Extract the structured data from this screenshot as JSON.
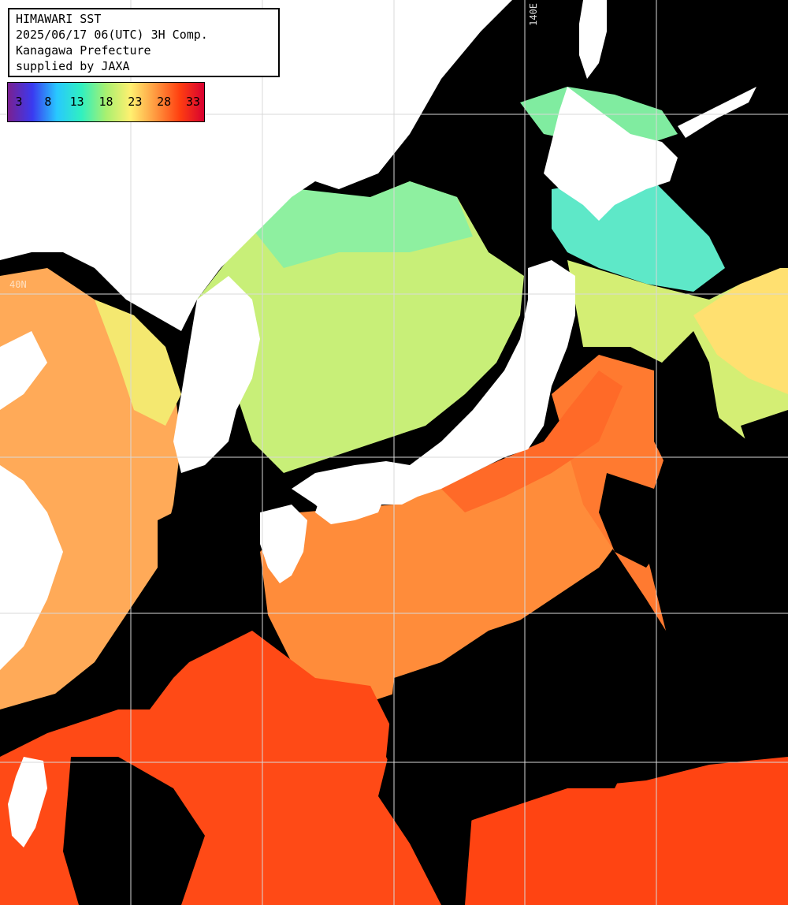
{
  "header": {
    "title": "HIMAWARI SST",
    "time": "2025/06/17 06(UTC) 3H Comp.",
    "region": "Kanagawa Prefecture",
    "credit": "supplied by JAXA"
  },
  "legend": {
    "ticks": [
      "3",
      "8",
      "13",
      "18",
      "23",
      "28",
      "33"
    ],
    "colors": [
      "#7a2090",
      "#3a3af0",
      "#28c8ff",
      "#30f0c0",
      "#a8f070",
      "#fff070",
      "#ff9a40",
      "#ff4010",
      "#d80030"
    ]
  },
  "grid_labels": {
    "longitude": "140E",
    "latitude": "40N"
  },
  "colors": {
    "land": "#ffffff",
    "cloud": "#000000",
    "grid": "#d8d8d8",
    "sst_cold": "#60e6d8",
    "sst_cool": "#a8ec7c",
    "sst_mid": "#e6f070",
    "sst_warm": "#ffb060",
    "sst_hot": "#ff5a1e"
  }
}
